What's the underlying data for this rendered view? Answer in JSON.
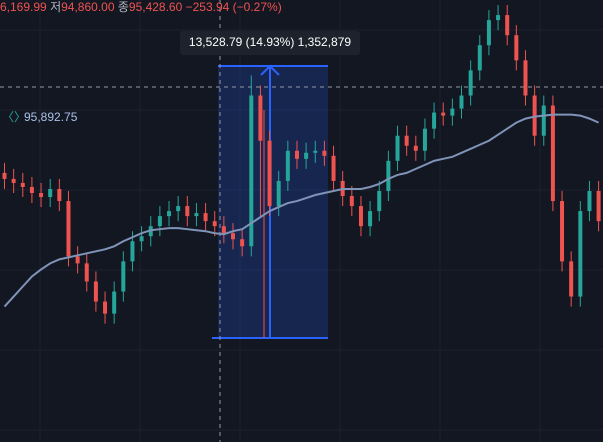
{
  "chart_data": {
    "type": "candlestick",
    "header": {
      "high": "6,169.99",
      "low_label": "저",
      "low": "94,860.00",
      "close_label": "종",
      "close": "95,428.60",
      "change": "−253.94 (−0.27%)"
    },
    "ma_label": "95,892.75",
    "measure": {
      "label": "13,528.79 (14.93%) 1,352,879",
      "from": 90613,
      "to": 104142
    },
    "ylim": [
      85440,
      107425
    ],
    "up_color": "#26a69a",
    "down_color": "#ef5350",
    "ma_color": "#7f94b8",
    "open": [
      98825,
      98525,
      98325,
      98125,
      97825,
      97625,
      98025,
      97425,
      94675,
      94325,
      93425,
      92425,
      91825,
      92925,
      94425,
      95425,
      95675,
      96175,
      96675,
      96925,
      97175,
      96675,
      96825,
      96425,
      96175,
      95825,
      95525,
      95175,
      102675,
      100425,
      97175,
      98425,
      99925,
      99525,
      99825,
      99925,
      99675,
      98425,
      97675,
      97175,
      96175,
      96925,
      97925,
      99425,
      100675,
      100175,
      99925,
      101025,
      101825,
      101675,
      102025,
      102675,
      103925,
      105175,
      106425,
      106675,
      105675,
      104425,
      102675,
      100675,
      102175,
      97425,
      94425,
      92675,
      96925,
      97925
    ],
    "high": [
      99325,
      99025,
      98825,
      98625,
      98325,
      98525,
      98525,
      97925,
      95175,
      94825,
      93925,
      92925,
      93425,
      94925,
      95925,
      96175,
      96675,
      97175,
      97425,
      97675,
      97675,
      97325,
      97325,
      96925,
      96675,
      96325,
      96025,
      103675,
      103175,
      100925,
      98925,
      100425,
      100425,
      100325,
      100425,
      100425,
      100175,
      98925,
      98175,
      97675,
      97425,
      98425,
      99925,
      101175,
      101175,
      100675,
      101525,
      102325,
      102325,
      102525,
      103175,
      104425,
      105675,
      106925,
      107175,
      107175,
      106175,
      104925,
      103175,
      102675,
      102675,
      97925,
      94925,
      97425,
      98425,
      98425
    ],
    "low": [
      98025,
      97825,
      97625,
      97325,
      97125,
      97125,
      96925,
      94175,
      93825,
      92925,
      91925,
      91325,
      91325,
      92425,
      93925,
      94925,
      95175,
      95675,
      96175,
      96425,
      96175,
      96175,
      95925,
      95675,
      95325,
      95025,
      94675,
      94675,
      96675,
      96675,
      96675,
      97925,
      99025,
      99025,
      99325,
      99175,
      97925,
      97175,
      96675,
      95675,
      95675,
      96425,
      97425,
      98925,
      99675,
      99425,
      99425,
      100525,
      101175,
      101175,
      101525,
      102175,
      103425,
      104675,
      105925,
      105175,
      103925,
      102175,
      100175,
      100175,
      96925,
      93925,
      92175,
      92175,
      96425,
      95925
    ],
    "close": [
      98525,
      98325,
      98125,
      97825,
      97625,
      98025,
      97425,
      94675,
      94325,
      93425,
      92425,
      91825,
      92925,
      94425,
      95425,
      95675,
      96175,
      96675,
      96925,
      97175,
      96675,
      96825,
      96425,
      96175,
      95825,
      95525,
      95175,
      102675,
      100425,
      97175,
      98425,
      99925,
      99525,
      99825,
      99925,
      99675,
      98425,
      97675,
      97175,
      96175,
      96925,
      97925,
      99425,
      100675,
      100175,
      99925,
      101025,
      101825,
      101675,
      102025,
      102675,
      103925,
      105175,
      106425,
      106675,
      105675,
      104425,
      102675,
      100675,
      102175,
      97425,
      94425,
      92675,
      96925,
      97925,
      96425
    ],
    "ma": [
      92175,
      92675,
      93175,
      93675,
      94025,
      94325,
      94525,
      94625,
      94725,
      94825,
      94925,
      95025,
      95175,
      95425,
      95625,
      95825,
      95975,
      96025,
      96075,
      96075,
      96025,
      95975,
      95925,
      95825,
      95775,
      95925,
      96025,
      96325,
      96625,
      96925,
      97125,
      97325,
      97425,
      97575,
      97725,
      97825,
      97925,
      98025,
      98025,
      98025,
      98125,
      98275,
      98525,
      98725,
      98825,
      99025,
      99225,
      99425,
      99525,
      99625,
      99825,
      100025,
      100225,
      100425,
      100725,
      101025,
      101325,
      101525,
      101625,
      101675,
      101725,
      101725,
      101725,
      101675,
      101525,
      101325
    ]
  }
}
